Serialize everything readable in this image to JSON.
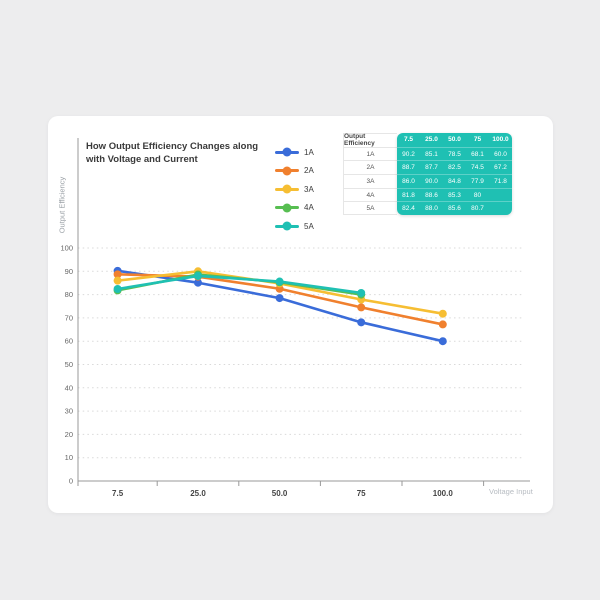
{
  "page": {
    "background_color": "#ededee",
    "card_color": "#ffffff"
  },
  "chart": {
    "title_lines": [
      "How Output Efficiency Changes along",
      "with Voltage and Current"
    ],
    "y_axis_name": "Output Efficiency",
    "x_axis_name": "Voltage Input"
  },
  "legend": {
    "items": [
      {
        "label": "1A",
        "color": "#3a6cd9"
      },
      {
        "label": "2A",
        "color": "#f0802e"
      },
      {
        "label": "3A",
        "color": "#f6be33"
      },
      {
        "label": "4A",
        "color": "#57be51"
      },
      {
        "label": "5A",
        "color": "#1fc0b3"
      }
    ]
  },
  "table": {
    "accent_color": "#1fc0b3",
    "header_label": "Output Efficiency",
    "columns": [
      "7.5",
      "25.0",
      "50.0",
      "75",
      "100.0"
    ],
    "rows": [
      {
        "label": "1A",
        "values": [
          "90.2",
          "85.1",
          "78.5",
          "68.1",
          "60.0"
        ]
      },
      {
        "label": "2A",
        "values": [
          "88.7",
          "87.7",
          "82.5",
          "74.5",
          "67.2"
        ]
      },
      {
        "label": "3A",
        "values": [
          "86.0",
          "90.0",
          "84.8",
          "77.9",
          "71.8"
        ]
      },
      {
        "label": "4A",
        "values": [
          "81.8",
          "88.6",
          "85.3",
          "80",
          ""
        ]
      },
      {
        "label": "5A",
        "values": [
          "82.4",
          "88.0",
          "85.6",
          "80.7",
          ""
        ]
      }
    ]
  },
  "chart_data": {
    "type": "line",
    "title": "How Output Efficiency Changes along with Voltage and Current",
    "xlabel": "Voltage Input",
    "ylabel": "Output Efficiency",
    "categories": [
      "7.5",
      "25.0",
      "50.0",
      "75",
      "100.0"
    ],
    "series": [
      {
        "name": "1A",
        "color": "#3a6cd9",
        "values": [
          90.2,
          85.1,
          78.5,
          68.1,
          60.0
        ]
      },
      {
        "name": "2A",
        "color": "#f0802e",
        "values": [
          88.7,
          87.7,
          82.5,
          74.5,
          67.2
        ]
      },
      {
        "name": "3A",
        "color": "#f6be33",
        "values": [
          86.0,
          90.0,
          84.8,
          77.9,
          71.8
        ]
      },
      {
        "name": "4A",
        "color": "#57be51",
        "values": [
          81.8,
          88.6,
          85.3,
          80,
          null
        ]
      },
      {
        "name": "5A",
        "color": "#1fc0b3",
        "values": [
          82.4,
          88.0,
          85.6,
          80.7,
          null
        ]
      }
    ],
    "ylim": [
      0,
      100
    ],
    "y_ticks": [
      0,
      10,
      20,
      30,
      40,
      50,
      60,
      70,
      80,
      90,
      100
    ],
    "grid": "horizontal-dotted",
    "legend_position": "top-center-vertical"
  }
}
